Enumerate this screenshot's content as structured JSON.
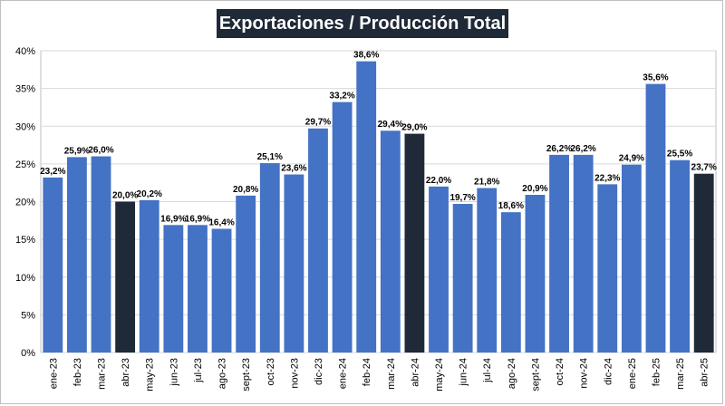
{
  "chart_data": {
    "type": "bar",
    "title": "Exportaciones / Producción Total",
    "xlabel": "",
    "ylabel": "",
    "ylim": [
      0,
      40
    ],
    "yticks": [
      "0%",
      "5%",
      "10%",
      "15%",
      "20%",
      "25%",
      "30%",
      "35%",
      "40%"
    ],
    "grid": true,
    "legend": "none",
    "categories": [
      "ene-23",
      "feb-23",
      "mar-23",
      "abr-23",
      "may-23",
      "jun-23",
      "jul-23",
      "ago-23",
      "sept-23",
      "oct-23",
      "nov-23",
      "dic-23",
      "ene-24",
      "feb-24",
      "mar-24",
      "abr-24",
      "may-24",
      "jun-24",
      "jul-24",
      "ago-24",
      "sept-24",
      "oct-24",
      "nov-24",
      "dic-24",
      "ene-25",
      "feb-25",
      "mar-25",
      "abr-25"
    ],
    "values": [
      23.2,
      25.9,
      26.0,
      20.0,
      20.2,
      16.9,
      16.9,
      16.4,
      20.8,
      25.1,
      23.6,
      29.7,
      33.2,
      38.6,
      29.4,
      29.0,
      22.0,
      19.7,
      21.8,
      18.6,
      20.9,
      26.2,
      26.2,
      22.3,
      24.9,
      35.6,
      25.5,
      23.7
    ],
    "labels": [
      "23,2%",
      "25,9%",
      "26,0%",
      "20,0%",
      "20,2%",
      "16,9%",
      "16,9%",
      "16,4%",
      "20,8%",
      "25,1%",
      "23,6%",
      "29,7%",
      "33,2%",
      "38,6%",
      "29,4%",
      "29,0%",
      "22,0%",
      "19,7%",
      "21,8%",
      "18,6%",
      "20,9%",
      "26,2%",
      "26,2%",
      "22,3%",
      "24,9%",
      "35,6%",
      "25,5%",
      "23,7%"
    ],
    "highlighted": [
      "abr-23",
      "abr-24",
      "abr-25"
    ],
    "colors": {
      "bar": "#4472c4",
      "highlight": "#1f2937",
      "grid": "#d9d9d9",
      "title_bg": "#1f2937"
    }
  }
}
